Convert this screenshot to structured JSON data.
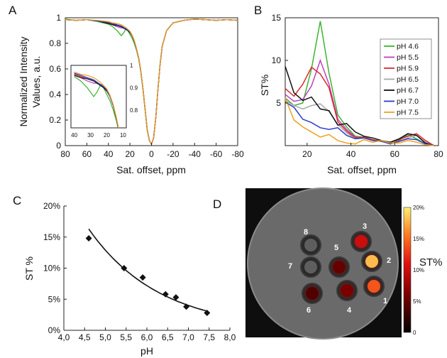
{
  "chart_data": [
    {
      "panel": "A",
      "type": "line",
      "xlabel": "Sat. offset, ppm",
      "ylabel_lines": [
        "Normalized Intensity",
        "Values, a.u."
      ],
      "xlim": [
        80,
        -80
      ],
      "ylim": [
        0,
        1
      ],
      "x_ticks": [
        "80",
        "60",
        "40",
        "20",
        "0",
        "-20",
        "-40",
        "-60",
        "-80"
      ],
      "y_ticks": [
        "0",
        "0.2",
        "0.4",
        "0.6",
        "0.8",
        "1"
      ],
      "x": [
        80,
        70,
        60,
        50,
        45,
        40,
        36,
        32,
        28,
        26,
        24,
        22,
        20,
        18,
        16,
        14,
        12,
        10,
        8,
        6,
        4,
        2,
        0,
        -2,
        -4,
        -6,
        -8,
        -10,
        -14,
        -20,
        -30,
        -40,
        -50,
        -60,
        -70,
        -80
      ],
      "series": [
        {
          "name": "pH 4.6",
          "color": "#3cb432",
          "values": [
            0.99,
            0.98,
            0.985,
            0.97,
            0.96,
            0.95,
            0.93,
            0.9,
            0.86,
            0.88,
            0.91,
            0.9,
            0.87,
            0.84,
            0.8,
            0.75,
            0.68,
            0.58,
            0.44,
            0.28,
            0.12,
            0.04,
            0.01,
            0.06,
            0.22,
            0.44,
            0.64,
            0.78,
            0.9,
            0.96,
            0.98,
            0.99,
            0.985,
            0.98,
            0.985,
            0.98
          ]
        },
        {
          "name": "pH 5.5",
          "color": "#c040c0",
          "values": [
            0.985,
            0.98,
            0.985,
            0.975,
            0.965,
            0.955,
            0.945,
            0.93,
            0.92,
            0.92,
            0.915,
            0.91,
            0.89,
            0.86,
            0.82,
            0.76,
            0.69,
            0.59,
            0.45,
            0.29,
            0.13,
            0.04,
            0.01,
            0.06,
            0.22,
            0.44,
            0.64,
            0.78,
            0.9,
            0.96,
            0.98,
            0.99,
            0.985,
            0.98,
            0.985,
            0.98
          ]
        },
        {
          "name": "pH 5.9",
          "color": "#e02828",
          "values": [
            0.985,
            0.98,
            0.985,
            0.975,
            0.97,
            0.96,
            0.95,
            0.94,
            0.93,
            0.92,
            0.915,
            0.905,
            0.89,
            0.86,
            0.82,
            0.76,
            0.69,
            0.59,
            0.45,
            0.29,
            0.13,
            0.04,
            0.01,
            0.06,
            0.22,
            0.44,
            0.64,
            0.78,
            0.9,
            0.96,
            0.98,
            0.99,
            0.985,
            0.98,
            0.985,
            0.98
          ]
        },
        {
          "name": "pH 6.5",
          "color": "#a8a8a8",
          "values": [
            0.985,
            0.98,
            0.985,
            0.975,
            0.97,
            0.965,
            0.955,
            0.945,
            0.935,
            0.925,
            0.915,
            0.905,
            0.89,
            0.86,
            0.82,
            0.76,
            0.69,
            0.59,
            0.45,
            0.29,
            0.13,
            0.04,
            0.01,
            0.06,
            0.22,
            0.44,
            0.64,
            0.78,
            0.9,
            0.96,
            0.98,
            0.99,
            0.985,
            0.98,
            0.985,
            0.98
          ]
        },
        {
          "name": "pH 6.7",
          "color": "#111111",
          "values": [
            0.985,
            0.98,
            0.985,
            0.975,
            0.965,
            0.955,
            0.945,
            0.94,
            0.93,
            0.92,
            0.91,
            0.9,
            0.885,
            0.86,
            0.82,
            0.76,
            0.69,
            0.59,
            0.45,
            0.29,
            0.13,
            0.04,
            0.01,
            0.06,
            0.22,
            0.44,
            0.64,
            0.78,
            0.9,
            0.96,
            0.98,
            0.99,
            0.985,
            0.98,
            0.985,
            0.98
          ]
        },
        {
          "name": "pH 7.0",
          "color": "#2a3fc8",
          "values": [
            0.985,
            0.98,
            0.985,
            0.975,
            0.97,
            0.965,
            0.955,
            0.945,
            0.935,
            0.925,
            0.915,
            0.905,
            0.89,
            0.86,
            0.82,
            0.76,
            0.69,
            0.59,
            0.45,
            0.29,
            0.13,
            0.04,
            0.01,
            0.06,
            0.22,
            0.44,
            0.64,
            0.78,
            0.9,
            0.96,
            0.98,
            0.99,
            0.985,
            0.98,
            0.985,
            0.98
          ]
        },
        {
          "name": "pH 7.5",
          "color": "#f0a020",
          "values": [
            0.985,
            0.98,
            0.985,
            0.98,
            0.975,
            0.97,
            0.96,
            0.955,
            0.945,
            0.935,
            0.925,
            0.91,
            0.895,
            0.865,
            0.825,
            0.765,
            0.69,
            0.59,
            0.45,
            0.29,
            0.13,
            0.04,
            0.01,
            0.06,
            0.22,
            0.44,
            0.64,
            0.78,
            0.9,
            0.96,
            0.98,
            0.99,
            0.985,
            0.98,
            0.985,
            0.98
          ]
        }
      ],
      "inset": {
        "xlim": [
          42,
          8
        ],
        "ylim": [
          0.72,
          1.0
        ],
        "x_ticks": [
          "40",
          "30",
          "20",
          "10"
        ],
        "y_ticks": [
          "1",
          "0.9",
          "0.8"
        ]
      }
    },
    {
      "panel": "B",
      "type": "line",
      "xlabel": "Sat. offset, ppm",
      "ylabel": "ST%",
      "xlim": [
        10,
        80
      ],
      "ylim": [
        0,
        15
      ],
      "x_ticks": [
        "20",
        "40",
        "60",
        "80"
      ],
      "y_ticks": [
        "5",
        "10",
        "15"
      ],
      "legend_position": "top-right",
      "x": [
        10,
        14,
        18,
        22,
        26,
        30,
        34,
        38,
        42,
        46,
        50,
        54,
        58,
        62,
        66,
        70,
        74,
        78
      ],
      "series": [
        {
          "name": "pH 4.6",
          "color": "#3cb432",
          "values": [
            5.6,
            4.7,
            5.0,
            9.0,
            14.6,
            8.5,
            3.6,
            2.2,
            1.1,
            1.0,
            0.7,
            0.5,
            0.3,
            0.6,
            1.3,
            0.8,
            0.2,
            0.0
          ]
        },
        {
          "name": "pH 5.5",
          "color": "#c040c0",
          "values": [
            6.0,
            5.2,
            5.4,
            7.0,
            10.0,
            7.2,
            3.1,
            1.9,
            1.0,
            0.9,
            0.6,
            0.5,
            0.4,
            0.7,
            1.1,
            1.4,
            0.6,
            0.0
          ]
        },
        {
          "name": "pH 5.9",
          "color": "#e02828",
          "values": [
            6.7,
            5.8,
            7.2,
            9.2,
            8.4,
            6.8,
            2.8,
            1.7,
            0.9,
            1.0,
            0.7,
            0.5,
            0.4,
            0.7,
            1.1,
            1.4,
            0.6,
            0.0
          ]
        },
        {
          "name": "pH 6.5",
          "color": "#a8a8a8",
          "values": [
            5.3,
            4.7,
            4.3,
            4.7,
            4.9,
            4.0,
            2.5,
            1.5,
            0.8,
            0.9,
            0.6,
            0.5,
            0.3,
            0.5,
            0.9,
            1.2,
            0.4,
            0.0
          ]
        },
        {
          "name": "pH 6.7",
          "color": "#111111",
          "values": [
            9.3,
            6.2,
            5.3,
            5.7,
            4.3,
            4.1,
            2.4,
            2.6,
            1.6,
            1.1,
            0.9,
            0.6,
            0.4,
            0.8,
            1.4,
            1.2,
            0.3,
            0.0
          ]
        },
        {
          "name": "pH 7.0",
          "color": "#2a3fc8",
          "values": [
            5.1,
            4.5,
            3.1,
            2.7,
            2.1,
            1.9,
            2.1,
            1.2,
            0.8,
            0.9,
            0.6,
            0.5,
            0.2,
            0.5,
            0.8,
            0.7,
            0.2,
            0.0
          ]
        },
        {
          "name": "pH 7.5",
          "color": "#f0a020",
          "values": [
            5.6,
            3.0,
            2.2,
            1.6,
            1.0,
            1.3,
            0.6,
            0.3,
            0.2,
            0.7,
            0.4,
            0.6,
            0.3,
            0.3,
            0.6,
            0.4,
            0.1,
            0.0
          ]
        }
      ]
    },
    {
      "panel": "C",
      "type": "scatter",
      "xlabel": "pH",
      "ylabel": "ST %",
      "xlim": [
        4.0,
        8.0
      ],
      "ylim": [
        0,
        20
      ],
      "x_ticks": [
        "4,0",
        "4,5",
        "5,0",
        "5,5",
        "6,0",
        "6,5",
        "7,0",
        "7,5",
        "8,0"
      ],
      "y_ticks": [
        "0%",
        "5%",
        "10%",
        "15%",
        "20%"
      ],
      "x": [
        4.6,
        5.45,
        5.9,
        6.45,
        6.7,
        6.95,
        7.45
      ],
      "values": [
        14.8,
        10.0,
        8.5,
        5.8,
        5.3,
        3.8,
        2.8
      ],
      "fit_curve": true
    }
  ],
  "panel_d": {
    "label": "D",
    "colorbar_label": "ST%",
    "colorbar_ticks": [
      "20%",
      "15%",
      "10%",
      "5%",
      "0"
    ],
    "vials": [
      {
        "label": "1",
        "st": 14
      },
      {
        "label": "2",
        "st": 18
      },
      {
        "label": "3",
        "st": 10
      },
      {
        "label": "4",
        "st": 6
      },
      {
        "label": "5",
        "st": 5
      },
      {
        "label": "6",
        "st": 4
      },
      {
        "label": "7",
        "st": 0
      },
      {
        "label": "8",
        "st": 0
      }
    ]
  }
}
